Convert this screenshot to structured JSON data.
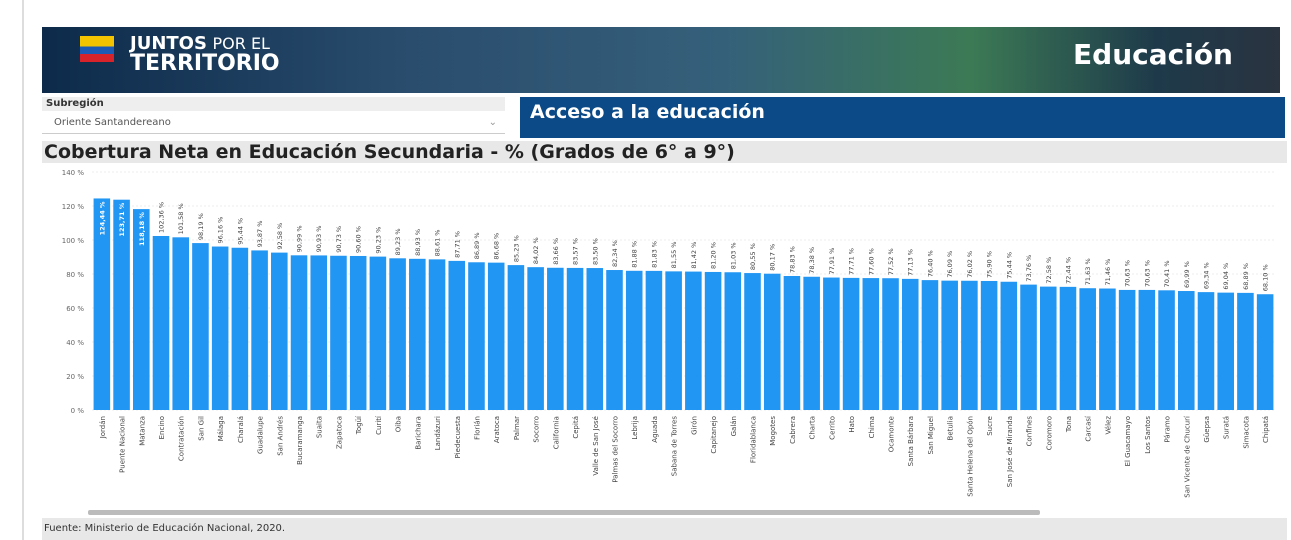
{
  "header": {
    "logo_top": "JUNTOS",
    "logo_mid": "POR EL",
    "logo_bottom": "TERRITORIO",
    "section": "Educación"
  },
  "filter": {
    "label": "Subregión",
    "value": "Oriente Santandereano"
  },
  "panel_title": "Acceso a la educación",
  "footer": "Fuente: Ministerio de Educación Nacional, 2020.",
  "chart_data": {
    "type": "bar",
    "title": "Cobertura Neta en Educación Secundaria - % (Grados de 6° a 9°)",
    "color": "#2196f3",
    "grid": true,
    "ylim": [
      0,
      140
    ],
    "yticks": [
      {
        "value": 0,
        "label": "0 %"
      },
      {
        "value": 20,
        "label": "20 %"
      },
      {
        "value": 40,
        "label": "40 %"
      },
      {
        "value": 60,
        "label": "60 %"
      },
      {
        "value": 80,
        "label": "80 %"
      },
      {
        "value": 100,
        "label": "100 %"
      },
      {
        "value": 120,
        "label": "120 %"
      },
      {
        "value": 140,
        "label": "140 %"
      }
    ],
    "categories": [
      "Jordán",
      "Puente Nacional",
      "Matanza",
      "Encino",
      "Contratación",
      "San Gil",
      "Málaga",
      "Charalá",
      "Guadalupe",
      "San Andrés",
      "Bucaramanga",
      "Suaita",
      "Zapatoca",
      "Togüí",
      "Curití",
      "Oiba",
      "Barichara",
      "Landázuri",
      "Piedecuesta",
      "Florián",
      "Aratoca",
      "Palmar",
      "Socorro",
      "California",
      "Cepitá",
      "Valle de San José",
      "Palmas del Socorro",
      "Lebrija",
      "Aguada",
      "Sabana de Torres",
      "Girón",
      "Capitanejo",
      "Galán",
      "Floridablanca",
      "Mogotes",
      "Cabrera",
      "Charta",
      "Cerrito",
      "Hato",
      "Chima",
      "Ocamonte",
      "Santa Bárbara",
      "San Miguel",
      "Betulia",
      "Santa Helena del Opón",
      "Sucre",
      "San José de Miranda",
      "Confines",
      "Coromoro",
      "Tona",
      "Carcasí",
      "Vélez",
      "El Guacamayo",
      "Los Santos",
      "Páramo",
      "San Vicente de Chucurí",
      "Güepsa",
      "Suratá",
      "Simacota",
      "Chipatá"
    ],
    "values": [
      124.44,
      123.71,
      118.18,
      102.36,
      101.58,
      98.19,
      96.16,
      95.44,
      93.87,
      92.58,
      90.99,
      90.93,
      90.73,
      90.6,
      90.23,
      89.23,
      88.93,
      88.61,
      87.71,
      86.89,
      86.68,
      85.23,
      84.02,
      83.66,
      83.57,
      83.5,
      82.34,
      81.88,
      81.83,
      81.55,
      81.42,
      81.2,
      81.03,
      80.55,
      80.17,
      78.83,
      78.38,
      77.91,
      77.71,
      77.6,
      77.52,
      77.13,
      76.4,
      76.09,
      76.02,
      75.9,
      75.44,
      73.76,
      72.58,
      72.44,
      71.63,
      71.46,
      70.63,
      70.63,
      70.41,
      69.99,
      69.34,
      69.04,
      68.89,
      68.1
    ],
    "value_labels": [
      "124,44 %",
      "123,71 %",
      "118,18 %",
      "102,36 %",
      "101,58 %",
      "98,19 %",
      "96,16 %",
      "95,44 %",
      "93,87 %",
      "92,58 %",
      "90,99 %",
      "90,93 %",
      "90,73 %",
      "90,60 %",
      "90,23 %",
      "89,23 %",
      "88,93 %",
      "88,61 %",
      "87,71 %",
      "86,89 %",
      "86,68 %",
      "85,23 %",
      "84,02 %",
      "83,66 %",
      "83,57 %",
      "83,50 %",
      "82,34 %",
      "81,88 %",
      "81,83 %",
      "81,55 %",
      "81,42 %",
      "81,20 %",
      "81,03 %",
      "80,55 %",
      "80,17 %",
      "78,83 %",
      "78,38 %",
      "77,91 %",
      "77,71 %",
      "77,60 %",
      "77,52 %",
      "77,13 %",
      "76,40 %",
      "76,09 %",
      "76,02 %",
      "75,90 %",
      "75,44 %",
      "73,76 %",
      "72,58 %",
      "72,44 %",
      "71,63 %",
      "71,46 %",
      "70,63 %",
      "70,63 %",
      "70,41 %",
      "69,99 %",
      "69,34 %",
      "69,04 %",
      "68,89 %",
      "68,10 %"
    ]
  }
}
